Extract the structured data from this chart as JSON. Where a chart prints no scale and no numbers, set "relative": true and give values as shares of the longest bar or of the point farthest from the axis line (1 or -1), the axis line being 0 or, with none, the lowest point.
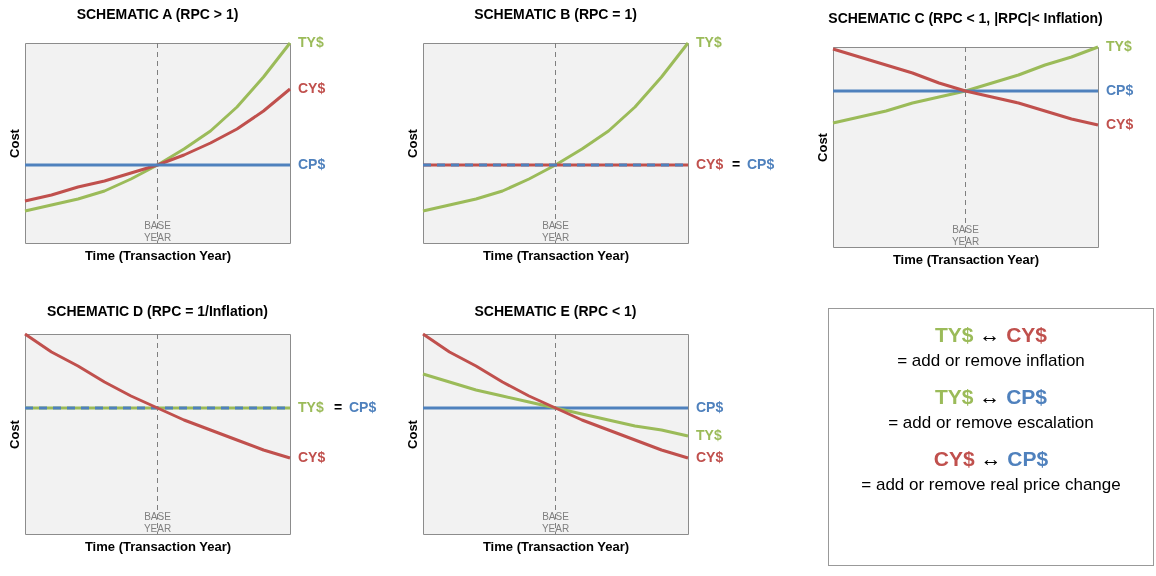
{
  "chart_data": [
    {
      "type": "line",
      "title": "SCHEMATIC A  (RPC > 1)",
      "xlabel": "Time (Transaction Year)",
      "ylabel": "Cost",
      "relative": true,
      "categories": [
        null,
        null,
        null,
        null,
        null,
        null,
        null,
        null,
        null,
        null,
        null
      ],
      "annotations": [
        "BASE YEAR"
      ],
      "series": [
        {
          "name": "TY$",
          "color": "#9bbb59",
          "values": [
            0.16,
            0.19,
            0.22,
            0.26,
            0.32,
            0.39,
            0.47,
            0.56,
            0.68,
            0.83,
            1.0
          ]
        },
        {
          "name": "CY$",
          "color": "#c0504d",
          "values": [
            0.21,
            0.24,
            0.28,
            0.31,
            0.35,
            0.39,
            0.44,
            0.5,
            0.57,
            0.66,
            0.77
          ]
        },
        {
          "name": "CP$",
          "color": "#4f81bd",
          "values": [
            0.39,
            0.39,
            0.39,
            0.39,
            0.39,
            0.39,
            0.39,
            0.39,
            0.39,
            0.39,
            0.39
          ]
        }
      ]
    },
    {
      "type": "line",
      "title": "SCHEMATIC B  (RPC = 1)",
      "xlabel": "Time (Transaction Year)",
      "ylabel": "Cost",
      "relative": true,
      "categories": [
        null,
        null,
        null,
        null,
        null,
        null,
        null,
        null,
        null,
        null,
        null
      ],
      "annotations": [
        "BASE YEAR",
        "="
      ],
      "series": [
        {
          "name": "TY$",
          "color": "#9bbb59",
          "values": [
            0.16,
            0.19,
            0.22,
            0.26,
            0.32,
            0.39,
            0.47,
            0.56,
            0.68,
            0.83,
            1.0
          ]
        },
        {
          "name": "CY$",
          "color": "#c0504d",
          "values": [
            0.39,
            0.39,
            0.39,
            0.39,
            0.39,
            0.39,
            0.39,
            0.39,
            0.39,
            0.39,
            0.39
          ]
        },
        {
          "name": "CP$",
          "color": "#4f81bd",
          "line_style": "dashed",
          "values": [
            0.39,
            0.39,
            0.39,
            0.39,
            0.39,
            0.39,
            0.39,
            0.39,
            0.39,
            0.39,
            0.39
          ]
        }
      ]
    },
    {
      "type": "line",
      "title": "SCHEMATIC C  (RPC < 1, |RPC|< Inflation)",
      "xlabel": "Time (Transaction Year)",
      "ylabel": "Cost",
      "relative": true,
      "categories": [
        null,
        null,
        null,
        null,
        null,
        null,
        null,
        null,
        null,
        null,
        null
      ],
      "annotations": [
        "BASE YEAR"
      ],
      "series": [
        {
          "name": "TY$",
          "color": "#9bbb59",
          "values": [
            0.62,
            0.65,
            0.68,
            0.72,
            0.75,
            0.78,
            0.82,
            0.86,
            0.91,
            0.95,
            1.0
          ]
        },
        {
          "name": "CP$",
          "color": "#4f81bd",
          "values": [
            0.78,
            0.78,
            0.78,
            0.78,
            0.78,
            0.78,
            0.78,
            0.78,
            0.78,
            0.78,
            0.78
          ]
        },
        {
          "name": "CY$",
          "color": "#c0504d",
          "values": [
            0.99,
            0.95,
            0.91,
            0.87,
            0.82,
            0.78,
            0.75,
            0.72,
            0.68,
            0.64,
            0.61
          ]
        }
      ]
    },
    {
      "type": "line",
      "title": "SCHEMATIC D  (RPC = 1/Inflation)",
      "xlabel": "Time (Transaction Year)",
      "ylabel": "Cost",
      "relative": true,
      "categories": [
        null,
        null,
        null,
        null,
        null,
        null,
        null,
        null,
        null,
        null,
        null
      ],
      "annotations": [
        "BASE YEAR",
        "="
      ],
      "series": [
        {
          "name": "TY$",
          "color": "#9bbb59",
          "values": [
            0.63,
            0.63,
            0.63,
            0.63,
            0.63,
            0.63,
            0.63,
            0.63,
            0.63,
            0.63,
            0.63
          ]
        },
        {
          "name": "CP$",
          "color": "#4f81bd",
          "line_style": "dashed",
          "values": [
            0.63,
            0.63,
            0.63,
            0.63,
            0.63,
            0.63,
            0.63,
            0.63,
            0.63,
            0.63,
            0.63
          ]
        },
        {
          "name": "CY$",
          "color": "#c0504d",
          "values": [
            1.0,
            0.91,
            0.84,
            0.76,
            0.69,
            0.63,
            0.57,
            0.52,
            0.47,
            0.42,
            0.38
          ]
        }
      ]
    },
    {
      "type": "line",
      "title": "SCHEMATIC E  (RPC < 1)",
      "xlabel": "Time (Transaction Year)",
      "ylabel": "Cost",
      "relative": true,
      "categories": [
        null,
        null,
        null,
        null,
        null,
        null,
        null,
        null,
        null,
        null,
        null
      ],
      "annotations": [
        "BASE YEAR"
      ],
      "series": [
        {
          "name": "CP$",
          "color": "#4f81bd",
          "values": [
            0.63,
            0.63,
            0.63,
            0.63,
            0.63,
            0.63,
            0.63,
            0.63,
            0.63,
            0.63,
            0.63
          ]
        },
        {
          "name": "TY$",
          "color": "#9bbb59",
          "values": [
            0.8,
            0.76,
            0.72,
            0.69,
            0.66,
            0.63,
            0.6,
            0.57,
            0.54,
            0.52,
            0.49
          ]
        },
        {
          "name": "CY$",
          "color": "#c0504d",
          "values": [
            1.0,
            0.91,
            0.84,
            0.76,
            0.69,
            0.63,
            0.57,
            0.52,
            0.47,
            0.42,
            0.38
          ]
        }
      ]
    },
    {
      "type": "other",
      "annotations": [
        "TY$ ↔ CY$",
        "= add or remove inflation",
        "TY$ ↔ CP$",
        "= add or remove escalation",
        "CY$ ↔ CP$",
        "= add or remove real price change"
      ],
      "colors": [
        "#9bbb59",
        "#c0504d",
        "#9bbb59",
        "#4f81bd",
        "#c0504d",
        "#4f81bd"
      ]
    }
  ]
}
